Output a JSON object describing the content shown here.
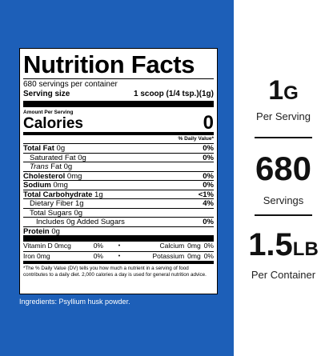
{
  "colors": {
    "background_blue": "#1d5fb8",
    "label_bg": "#ffffff",
    "ink": "#000000"
  },
  "nutrition_label": {
    "title": "Nutrition Facts",
    "servings_per_container": "680 servings per container",
    "serving_size_label": "Serving size",
    "serving_size_value": "1 scoop (1/4 tsp.)(1g)",
    "amount_per_serving": "Amount Per Serving",
    "calories_label": "Calories",
    "calories_value": "0",
    "dv_header": "% Daily Value*",
    "nutrients": [
      {
        "name": "Total Fat",
        "amount": "0g",
        "dv": "0%"
      },
      {
        "name": "Saturated Fat",
        "amount": "0g",
        "dv": "0%"
      },
      {
        "name": "Trans",
        "name_suffix": "Fat",
        "amount": "0g",
        "dv": ""
      },
      {
        "name": "Cholesterol",
        "amount": "0mg",
        "dv": "0%"
      },
      {
        "name": "Sodium",
        "amount": "0mg",
        "dv": "0%"
      },
      {
        "name": "Total Carbohydrate",
        "amount": "1g",
        "dv": "<1%"
      },
      {
        "name": "Dietary Fiber",
        "amount": "1g",
        "dv": "4%"
      },
      {
        "name": "Total Sugars",
        "amount": "0g",
        "dv": ""
      },
      {
        "name": "Includes 0g Added Sugars",
        "amount": "",
        "dv": "0%"
      },
      {
        "name": "Protein",
        "amount": "0g",
        "dv": ""
      }
    ],
    "vitamins": [
      {
        "left_name": "Vitamin D",
        "left_amount": "0mcg",
        "left_dv": "0%",
        "dot": "•",
        "right_name": "Calcium",
        "right_amount": "0mg",
        "right_dv": "0%"
      },
      {
        "left_name": "Iron",
        "left_amount": "0mg",
        "left_dv": "0%",
        "dot": "•",
        "right_name": "Potassium",
        "right_amount": "0mg",
        "right_dv": "0%"
      }
    ],
    "footnote": "*The % Daily Value (DV) tells you how much a nutrient in a serving of food contributes to a daily diet. 2,000 calories a day is used for general nutrition advice."
  },
  "ingredients": "Ingredients: Psyllium husk powder.",
  "stats": [
    {
      "value": "1",
      "unit": "G",
      "label": "Per Serving"
    },
    {
      "value": "680",
      "unit": "",
      "label": "Servings"
    },
    {
      "value": "1.5",
      "unit": "LB",
      "label": "Per Container"
    }
  ]
}
